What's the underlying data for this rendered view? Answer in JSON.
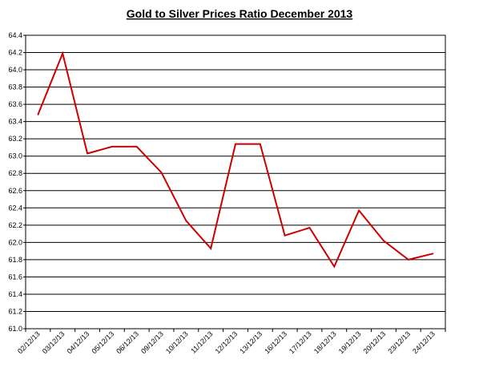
{
  "chart_data": {
    "type": "line",
    "title": "Gold to Silver Prices Ratio December 2013",
    "xlabel": "",
    "ylabel": "",
    "ylim": [
      61.0,
      64.4
    ],
    "ytick_labels": [
      "61.0",
      "61.2",
      "61.4",
      "61.6",
      "61.8",
      "62.0",
      "62.2",
      "62.4",
      "62.6",
      "62.8",
      "63.0",
      "63.2",
      "63.4",
      "63.6",
      "63.8",
      "64.0",
      "64.2",
      "64.4"
    ],
    "categories": [
      "02/12/13",
      "03/12/13",
      "04/12/13",
      "05/12/13",
      "06/12/13",
      "09/12/13",
      "10/12/13",
      "11/12/13",
      "12/12/13",
      "13/12/13",
      "16/12/13",
      "17/12/13",
      "18/12/13",
      "19/12/13",
      "20/12/13",
      "23/12/13",
      "24/12/13"
    ],
    "series": [
      {
        "values": [
          63.48,
          64.19,
          63.03,
          63.11,
          63.11,
          62.81,
          62.25,
          61.93,
          63.14,
          63.14,
          62.08,
          62.17,
          61.72,
          62.37,
          62.02,
          61.8,
          61.87
        ],
        "color": "#cc0000"
      }
    ],
    "grid": true,
    "legend": "none"
  }
}
